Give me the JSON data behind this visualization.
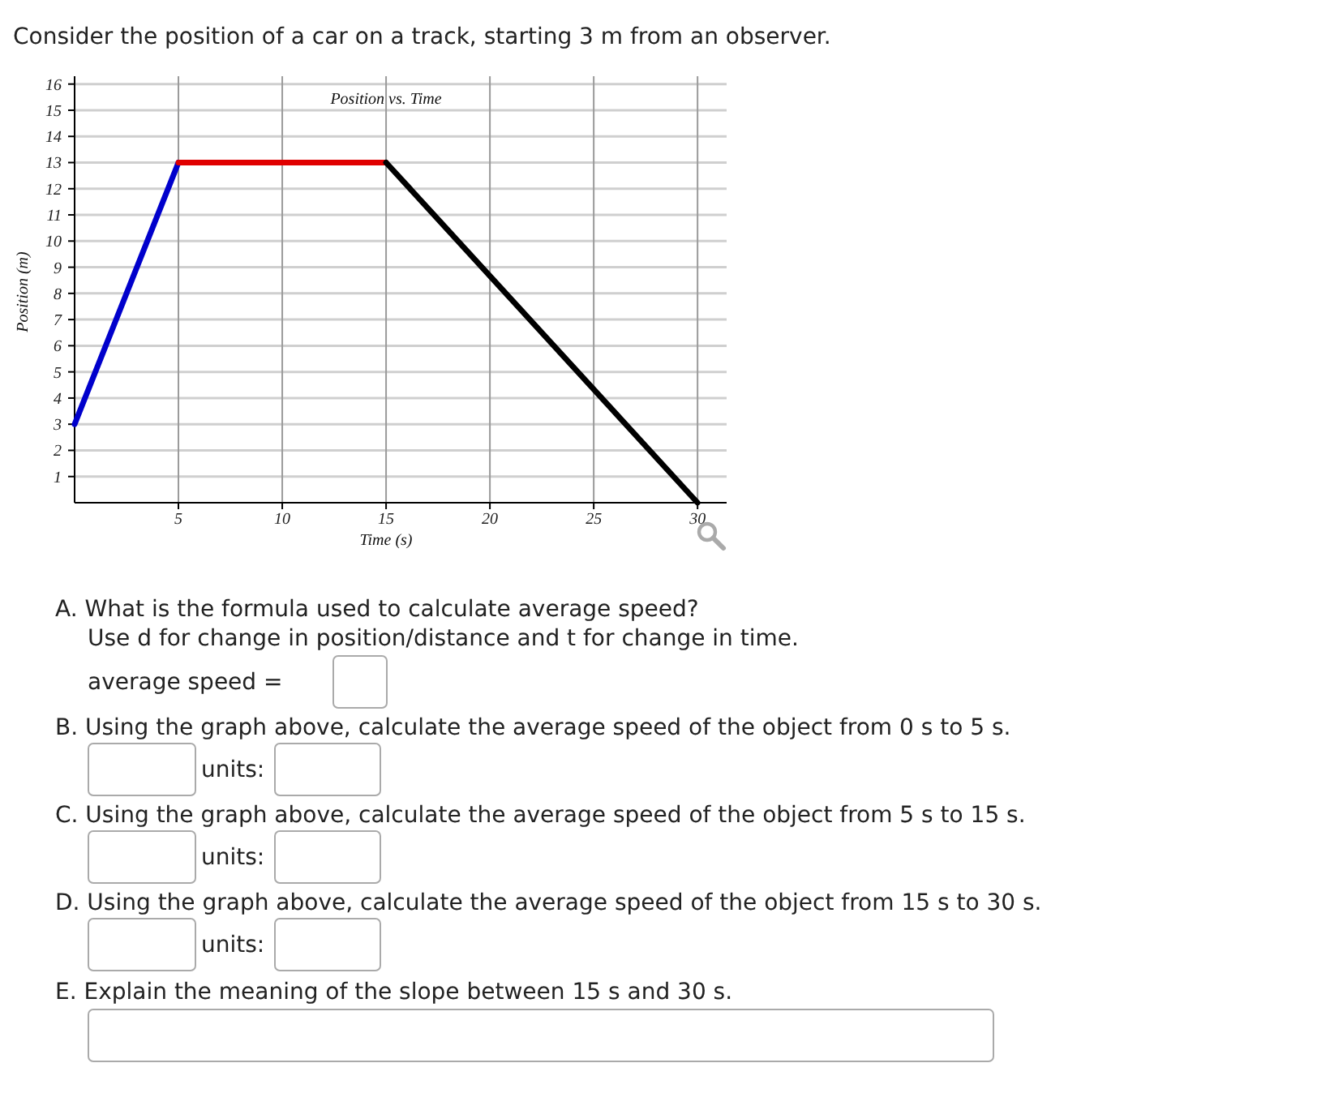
{
  "chart_data": {
    "type": "line",
    "title": "Position vs. Time",
    "xlabel": "Time (s)",
    "ylabel": "Position (m)",
    "series": [
      {
        "color": "#0000cc",
        "x": [
          0,
          5
        ],
        "values": [
          3,
          13
        ]
      },
      {
        "color": "#e00000",
        "x": [
          5,
          15
        ],
        "values": [
          13,
          13
        ]
      },
      {
        "color": "#000000",
        "x": [
          15,
          30
        ],
        "values": [
          13,
          0
        ]
      }
    ],
    "xlim": [
      0,
      31.4
    ],
    "ylim": [
      0,
      16.3
    ],
    "xticks": [
      5,
      10,
      15,
      20,
      25,
      30
    ],
    "yticks": [
      1,
      2,
      3,
      4,
      5,
      6,
      7,
      8,
      9,
      10,
      11,
      12,
      13,
      14,
      15,
      16
    ],
    "grid": true,
    "annotations": [
      "Consider the position of a car on a track, starting 3 m from an observer.",
      "A. What is the formula used to calculate average speed?",
      "Use d for change in position/distance and t for change in time.",
      "average speed =",
      "B. Using the graph above, calculate the average speed of the object from 0 s to 5 s.",
      "units:",
      "C. Using the graph above, calculate the average speed of the object from 5 s to 15 s.",
      "units:",
      "D. Using the graph above, calculate the average speed of the object from 15 s to 30 s.",
      "units:",
      "E. Explain the meaning of the slope between 15 s and 30 s."
    ]
  }
}
